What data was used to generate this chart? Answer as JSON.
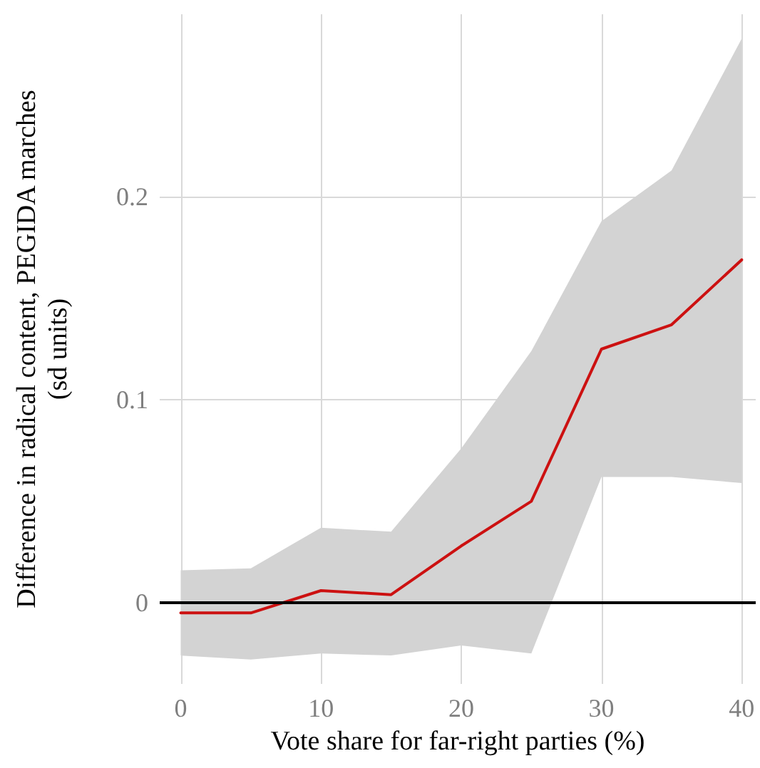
{
  "chart_data": {
    "type": "line",
    "xlabel": "Vote share for far-right parties (%)",
    "ylabel": "Difference in radical content, PEGIDA marches (sd units)",
    "x": [
      0,
      5,
      10,
      15,
      20,
      25,
      30,
      35,
      40
    ],
    "series": [
      {
        "color": "#cc1111",
        "values": [
          -0.005,
          -0.005,
          0.006,
          0.004,
          0.028,
          0.05,
          0.125,
          0.137,
          0.169
        ],
        "lower": [
          -0.026,
          -0.028,
          -0.025,
          -0.026,
          -0.021,
          -0.025,
          0.062,
          0.062,
          0.059
        ],
        "upper": [
          0.016,
          0.017,
          0.037,
          0.035,
          0.076,
          0.124,
          0.188,
          0.213,
          0.278
        ]
      }
    ],
    "xlim": [
      -1.5,
      41
    ],
    "xticks": [
      0,
      10,
      20,
      30,
      40
    ],
    "ylim": [
      -0.04,
      0.29
    ],
    "yticks": [
      0,
      0.1,
      0.2
    ],
    "ref_lines": [
      {
        "axis": "y",
        "value": 0,
        "color": "#000000"
      }
    ],
    "grid": true,
    "marker": "none",
    "line_style": "solid"
  }
}
